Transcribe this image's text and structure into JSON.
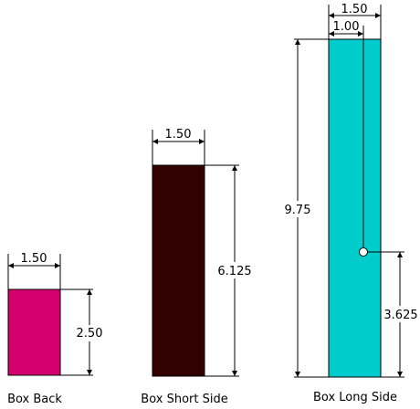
{
  "parts": [
    {
      "label": "Box Back",
      "color": "#d4006f",
      "width_dim": "1.50",
      "height_dim": "2.50"
    },
    {
      "label": "Box Short Side",
      "color": "#330000",
      "width_dim": "1.50",
      "height_dim": "6.125"
    },
    {
      "label": "Box Long Side",
      "color": "#00cccc",
      "width_dim": "1.50",
      "offset_dim": "1.00",
      "height_dim": "9.75",
      "hole_height_dim": "3.625"
    }
  ]
}
